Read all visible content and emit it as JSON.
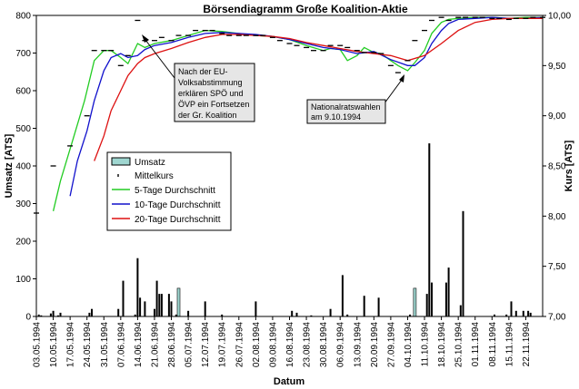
{
  "chart_data": {
    "type": "bar",
    "title": "Börsendiagramm Große Koalition-Aktie",
    "xlabel": "Datum",
    "ylabel_left": "Umsatz [ATS]",
    "ylabel_right": "Kurs [ATS]",
    "left_axis": {
      "min": 0,
      "max": 800,
      "ticks": [
        0,
        100,
        200,
        300,
        400,
        500,
        600,
        700,
        800
      ]
    },
    "right_axis": {
      "min": 7.0,
      "max": 10.0,
      "ticks": [
        "7,00",
        "7,50",
        "8,00",
        "8,50",
        "9,00",
        "9,50",
        "10,00"
      ],
      "tick_values": [
        7.0,
        7.5,
        8.0,
        8.5,
        9.0,
        9.5,
        10.0
      ]
    },
    "x_range": {
      "start": "1994-05-03",
      "end": "1994-11-29"
    },
    "x_tick_labels": [
      "03.05.1994",
      "10.05.1994",
      "17.05.1994",
      "24.05.1994",
      "31.05.1994",
      "07.06.1994",
      "14.06.1994",
      "21.06.1994",
      "28.06.1994",
      "05.07.1994",
      "12.07.1994",
      "19.07.1994",
      "26.07.1994",
      "02.08.1994",
      "09.08.1994",
      "16.08.1994",
      "23.08.1994",
      "30.08.1994",
      "06.09.1994",
      "13.09.1994",
      "20.09.1994",
      "27.09.1994",
      "04.10.1994",
      "11.10.1994",
      "18.10.1994",
      "25.10.1994",
      "01.11.1994",
      "08.11.1994",
      "15.11.1994",
      "22.11.1994"
    ],
    "grid": false,
    "legend": {
      "placement": "center-left",
      "entries": [
        "Umsatz",
        "Mittelkurs",
        "5-Tage Durchschnitt",
        "10-Tage Durchschnitt",
        "20-Tage Durchschnitt"
      ]
    },
    "colors": {
      "umsatz": "#9fd6d0",
      "mittelkurs": "#000000",
      "ma5": "#22cc22",
      "ma10": "#1111cc",
      "ma20": "#dd1111"
    },
    "series": [
      {
        "name": "Umsatz",
        "axis": "left",
        "type": "bar",
        "x": [
          "1994-05-04",
          "1994-05-05",
          "1994-05-09",
          "1994-05-10",
          "1994-05-12",
          "1994-05-13",
          "1994-05-25",
          "1994-05-26",
          "1994-06-06",
          "1994-06-08",
          "1994-06-13",
          "1994-06-14",
          "1994-06-15",
          "1994-06-17",
          "1994-06-21",
          "1994-06-22",
          "1994-06-23",
          "1994-06-24",
          "1994-06-27",
          "1994-06-28",
          "1994-06-30",
          "1994-07-01",
          "1994-07-05",
          "1994-07-12",
          "1994-07-19",
          "1994-08-02",
          "1994-08-17",
          "1994-08-19",
          "1994-08-25",
          "1994-09-02",
          "1994-09-07",
          "1994-09-09",
          "1994-09-16",
          "1994-09-22",
          "1994-10-05",
          "1994-10-07",
          "1994-10-12",
          "1994-10-13",
          "1994-10-14",
          "1994-10-20",
          "1994-10-21",
          "1994-10-26",
          "1994-10-27",
          "1994-11-09",
          "1994-11-14",
          "1994-11-16",
          "1994-11-18",
          "1994-11-21",
          "1994-11-23",
          "1994-11-24"
        ],
        "values": [
          5,
          3,
          8,
          15,
          3,
          10,
          10,
          20,
          20,
          95,
          5,
          155,
          50,
          40,
          20,
          95,
          60,
          60,
          60,
          40,
          5,
          75,
          15,
          40,
          5,
          40,
          15,
          10,
          3,
          20,
          110,
          5,
          55,
          50,
          5,
          75,
          60,
          460,
          90,
          90,
          130,
          30,
          280,
          5,
          5,
          40,
          15,
          15,
          15,
          10
        ]
      },
      {
        "name": "Mittelkurs",
        "axis": "right",
        "type": "tick",
        "x": [
          "1994-05-03",
          "1994-05-10",
          "1994-05-17",
          "1994-05-24",
          "1994-05-27",
          "1994-05-31",
          "1994-06-03",
          "1994-06-07",
          "1994-06-10",
          "1994-06-14",
          "1994-06-17",
          "1994-06-21",
          "1994-06-24",
          "1994-06-28",
          "1994-07-01",
          "1994-07-05",
          "1994-07-08",
          "1994-07-12",
          "1994-07-15",
          "1994-07-19",
          "1994-07-22",
          "1994-07-26",
          "1994-07-29",
          "1994-08-02",
          "1994-08-05",
          "1994-08-09",
          "1994-08-12",
          "1994-08-16",
          "1994-08-19",
          "1994-08-23",
          "1994-08-26",
          "1994-08-30",
          "1994-09-02",
          "1994-09-06",
          "1994-09-09",
          "1994-09-13",
          "1994-09-16",
          "1994-09-20",
          "1994-09-23",
          "1994-09-27",
          "1994-09-30",
          "1994-10-04",
          "1994-10-07",
          "1994-10-11",
          "1994-10-14",
          "1994-10-18",
          "1994-10-21",
          "1994-10-25",
          "1994-10-28",
          "1994-11-01",
          "1994-11-04",
          "1994-11-08",
          "1994-11-11",
          "1994-11-15",
          "1994-11-18",
          "1994-11-22",
          "1994-11-25",
          "1994-11-29"
        ],
        "values": [
          8.03,
          8.5,
          8.7,
          9.0,
          9.65,
          9.65,
          9.65,
          9.5,
          9.6,
          9.95,
          9.75,
          9.75,
          9.78,
          9.75,
          9.8,
          9.8,
          9.85,
          9.85,
          9.85,
          9.82,
          9.8,
          9.8,
          9.8,
          9.8,
          9.8,
          9.78,
          9.75,
          9.72,
          9.7,
          9.68,
          9.65,
          9.65,
          9.7,
          9.7,
          9.68,
          9.65,
          9.63,
          9.63,
          9.62,
          9.5,
          9.43,
          9.55,
          9.75,
          9.85,
          9.95,
          9.98,
          9.95,
          9.98,
          9.98,
          9.98,
          9.98,
          9.97,
          9.97,
          9.96,
          9.97,
          9.97,
          9.98,
          9.98
        ]
      },
      {
        "name": "5-Tage Durchschnitt",
        "axis": "right",
        "type": "line",
        "x": [
          "1994-05-10",
          "1994-05-13",
          "1994-05-18",
          "1994-05-23",
          "1994-05-27",
          "1994-05-31",
          "1994-06-03",
          "1994-06-07",
          "1994-06-10",
          "1994-06-14",
          "1994-06-17",
          "1994-06-21",
          "1994-06-28",
          "1994-07-05",
          "1994-07-12",
          "1994-07-19",
          "1994-07-26",
          "1994-08-02",
          "1994-08-09",
          "1994-08-16",
          "1994-08-23",
          "1994-08-30",
          "1994-09-02",
          "1994-09-06",
          "1994-09-09",
          "1994-09-13",
          "1994-09-16",
          "1994-09-20",
          "1994-09-23",
          "1994-09-27",
          "1994-09-30",
          "1994-10-04",
          "1994-10-07",
          "1994-10-11",
          "1994-10-14",
          "1994-10-18",
          "1994-10-21",
          "1994-10-25",
          "1994-11-01",
          "1994-11-08",
          "1994-11-15",
          "1994-11-22",
          "1994-11-29"
        ],
        "values": [
          8.05,
          8.35,
          8.75,
          9.15,
          9.55,
          9.65,
          9.65,
          9.58,
          9.52,
          9.72,
          9.68,
          9.72,
          9.75,
          9.8,
          9.85,
          9.84,
          9.82,
          9.8,
          9.79,
          9.76,
          9.7,
          9.65,
          9.67,
          9.66,
          9.55,
          9.6,
          9.68,
          9.63,
          9.62,
          9.55,
          9.5,
          9.45,
          9.53,
          9.65,
          9.82,
          9.93,
          9.96,
          9.97,
          9.98,
          9.98,
          9.97,
          9.98,
          9.98
        ]
      },
      {
        "name": "10-Tage Durchschnitt",
        "axis": "right",
        "type": "line",
        "x": [
          "1994-05-17",
          "1994-05-20",
          "1994-05-24",
          "1994-05-27",
          "1994-05-31",
          "1994-06-03",
          "1994-06-07",
          "1994-06-10",
          "1994-06-14",
          "1994-06-17",
          "1994-06-21",
          "1994-06-28",
          "1994-07-05",
          "1994-07-12",
          "1994-07-19",
          "1994-07-26",
          "1994-08-02",
          "1994-08-09",
          "1994-08-16",
          "1994-08-23",
          "1994-08-30",
          "1994-09-06",
          "1994-09-13",
          "1994-09-20",
          "1994-09-27",
          "1994-10-04",
          "1994-10-07",
          "1994-10-11",
          "1994-10-14",
          "1994-10-18",
          "1994-10-21",
          "1994-10-25",
          "1994-11-01",
          "1994-11-08",
          "1994-11-15",
          "1994-11-22",
          "1994-11-29"
        ],
        "values": [
          8.2,
          8.55,
          8.85,
          9.15,
          9.45,
          9.58,
          9.62,
          9.58,
          9.6,
          9.66,
          9.7,
          9.73,
          9.78,
          9.82,
          9.83,
          9.82,
          9.81,
          9.79,
          9.76,
          9.72,
          9.68,
          9.66,
          9.62,
          9.64,
          9.56,
          9.5,
          9.5,
          9.58,
          9.72,
          9.85,
          9.92,
          9.96,
          9.97,
          9.98,
          9.97,
          9.97,
          9.98
        ]
      },
      {
        "name": "20-Tage Durchschnitt",
        "axis": "right",
        "type": "line",
        "x": [
          "1994-05-27",
          "1994-05-31",
          "1994-06-03",
          "1994-06-07",
          "1994-06-10",
          "1994-06-14",
          "1994-06-17",
          "1994-06-21",
          "1994-06-28",
          "1994-07-05",
          "1994-07-12",
          "1994-07-19",
          "1994-07-26",
          "1994-08-02",
          "1994-08-09",
          "1994-08-16",
          "1994-08-23",
          "1994-08-30",
          "1994-09-06",
          "1994-09-13",
          "1994-09-20",
          "1994-09-27",
          "1994-10-04",
          "1994-10-11",
          "1994-10-18",
          "1994-10-25",
          "1994-11-01",
          "1994-11-08",
          "1994-11-15",
          "1994-11-22",
          "1994-11-29"
        ],
        "values": [
          8.55,
          8.8,
          9.05,
          9.25,
          9.4,
          9.52,
          9.58,
          9.62,
          9.67,
          9.73,
          9.78,
          9.81,
          9.81,
          9.8,
          9.79,
          9.77,
          9.73,
          9.7,
          9.67,
          9.64,
          9.62,
          9.6,
          9.55,
          9.6,
          9.72,
          9.85,
          9.93,
          9.96,
          9.97,
          9.97,
          9.97
        ]
      }
    ],
    "annotations": [
      {
        "text": [
          "Nach der EU-",
          "Volksabstimmung",
          "erklären SPÖ und",
          "ÖVP ein Fortsetzen",
          "der Gr. Koalition"
        ],
        "target_date": "1994-06-14",
        "target_value": 9.8
      },
      {
        "text": [
          "Nationalratswahlen",
          "am 9.10.1994"
        ],
        "target_date": "1994-10-06",
        "target_value": 9.5
      }
    ]
  }
}
